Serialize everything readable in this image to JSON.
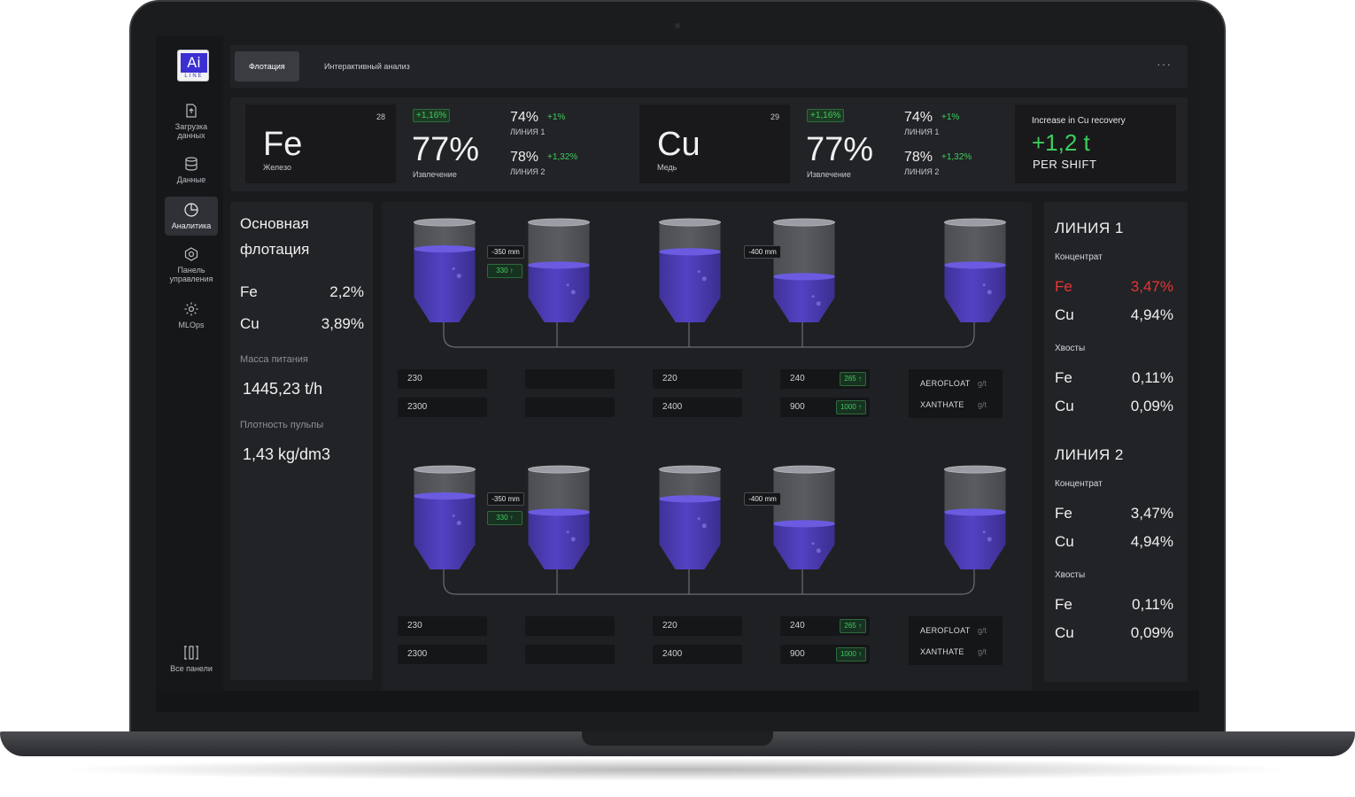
{
  "app": {
    "logo_main": "Ai",
    "logo_sub": "LINE"
  },
  "sidebar": {
    "items": [
      {
        "label": "Загрузка данных",
        "icon": "upload-file-icon"
      },
      {
        "label": "Данные",
        "icon": "database-icon"
      },
      {
        "label": "Аналитика",
        "icon": "pie-chart-icon",
        "active": true
      },
      {
        "label": "Панель управления",
        "icon": "control-panel-icon"
      },
      {
        "label": "MLOps",
        "icon": "gear-icon"
      }
    ],
    "all_panels_label": "Все панели"
  },
  "topbar": {
    "tabs": [
      {
        "label": "Флотация",
        "active": true
      },
      {
        "label": "Интерактивный анализ",
        "active": false
      }
    ],
    "more": "···"
  },
  "kpi": {
    "fe": {
      "symbol": "Fe",
      "name": "Железо",
      "number": "28",
      "delta": "+1,16%",
      "recovery": "77%",
      "recovery_label": "Извлечение",
      "line1_pct": "74%",
      "line1_delta": "+1%",
      "line1_label": "ЛИНИЯ 1",
      "line2_pct": "78%",
      "line2_delta": "+1,32%",
      "line2_label": "ЛИНИЯ 2"
    },
    "cu": {
      "symbol": "Cu",
      "name": "Медь",
      "number": "29",
      "delta": "+1,16%",
      "recovery": "77%",
      "recovery_label": "Извлечение",
      "line1_pct": "74%",
      "line1_delta": "+1%",
      "line1_label": "ЛИНИЯ 1",
      "line2_pct": "78%",
      "line2_delta": "+1,32%",
      "line2_label": "ЛИНИЯ 2"
    },
    "recovery_card": {
      "title": "Increase in Cu recovery",
      "value": "+1,2 t",
      "period": "PER SHIFT"
    }
  },
  "left_panel": {
    "title_line1": "Основная",
    "title_line2": "флотация",
    "fe_label": "Fe",
    "fe_value": "2,2%",
    "cu_label": "Cu",
    "cu_value": "3,89%",
    "feed_mass_label": "Масса питания",
    "feed_mass_value": "1445,23 t/h",
    "pulp_density_label": "Плотность пульпы",
    "pulp_density_value": "1,43 kg/dm3"
  },
  "lines": [
    {
      "levels": {
        "a": "-350 mm",
        "a_green": "330",
        "b": "-400 mm"
      },
      "tank_fills": [
        0.75,
        0.58,
        0.72,
        0.46,
        0.58
      ],
      "fields": {
        "c1_top": "230",
        "c1_bottom": "2300",
        "c3_top": "220",
        "c3_bottom": "2400",
        "c4_top": "240",
        "c4_top_set": "265",
        "c4_bottom": "900",
        "c4_bottom_set": "1000"
      },
      "reagents": [
        {
          "name": "AEROFLOAT",
          "unit": "g/t"
        },
        {
          "name": "XANTHATE",
          "unit": "g/t"
        }
      ]
    },
    {
      "levels": {
        "a": "-350 mm",
        "a_green": "330",
        "b": "-400 mm"
      },
      "tank_fills": [
        0.75,
        0.58,
        0.72,
        0.46,
        0.58
      ],
      "fields": {
        "c1_top": "230",
        "c1_bottom": "2300",
        "c3_top": "220",
        "c3_bottom": "2400",
        "c4_top": "240",
        "c4_top_set": "265",
        "c4_bottom": "900",
        "c4_bottom_set": "1000"
      },
      "reagents": [
        {
          "name": "AEROFLOAT",
          "unit": "g/t"
        },
        {
          "name": "XANTHATE",
          "unit": "g/t"
        }
      ]
    }
  ],
  "right_panel": {
    "line1": {
      "title": "ЛИНИЯ 1",
      "concentrate_label": "Концентрат",
      "conc_fe_label": "Fe",
      "conc_fe_value": "3,47%",
      "conc_cu_label": "Cu",
      "conc_cu_value": "4,94%",
      "tails_label": "Хвосты",
      "tails_fe_label": "Fe",
      "tails_fe_value": "0,11%",
      "tails_cu_label": "Cu",
      "tails_cu_value": "0,09%",
      "alert_color": "#e83535"
    },
    "line2": {
      "title": "ЛИНИЯ 2",
      "concentrate_label": "Концентрат",
      "conc_fe_label": "Fe",
      "conc_fe_value": "3,47%",
      "conc_cu_label": "Cu",
      "conc_cu_value": "4,94%",
      "tails_label": "Хвосты",
      "tails_fe_label": "Fe",
      "tails_fe_value": "0,11%",
      "tails_cu_label": "Cu",
      "tails_cu_value": "0,09%"
    }
  },
  "colors": {
    "accent_green": "#3dcd5d",
    "alert_red": "#e83535",
    "liquid": "#4a3cb0",
    "brand": "#3b2fd1"
  }
}
